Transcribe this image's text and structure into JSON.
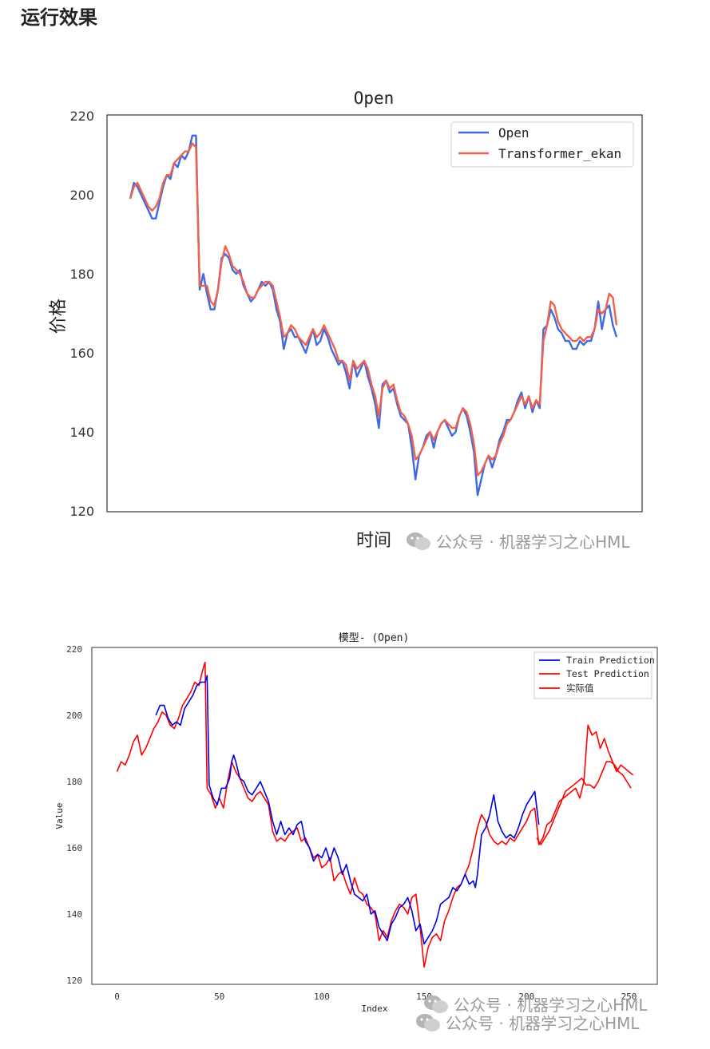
{
  "page": {
    "heading": "运行效果"
  },
  "watermarks": {
    "w1": "公众号 · 机器学习之心HML",
    "w2": "公众号 · 机器学习之心HML",
    "w3": "公众号 · 机器学习之心HML"
  },
  "chart_data": [
    {
      "type": "line",
      "title": "Open",
      "xlabel": "时间",
      "ylabel": "价格",
      "ylim": [
        120,
        220
      ],
      "yticks": [
        120,
        140,
        160,
        180,
        200,
        220
      ],
      "xticks_shown": false,
      "grid": false,
      "legend": "top-right",
      "series": [
        {
          "name": "Open",
          "color": "#4169e1",
          "values": [
            199,
            203,
            202,
            200,
            198,
            196,
            194,
            194,
            198,
            202,
            205,
            204,
            208,
            207,
            210,
            209,
            211,
            215,
            215,
            176,
            180,
            175,
            171,
            171,
            176,
            184,
            185,
            184,
            181,
            180,
            181,
            177,
            175,
            173,
            174,
            176,
            178,
            177,
            178,
            176,
            171,
            168,
            161,
            165,
            166,
            164,
            164,
            162,
            160,
            163,
            166,
            162,
            163,
            166,
            164,
            161,
            159,
            157,
            158,
            155,
            151,
            158,
            154,
            156,
            158,
            154,
            151,
            147,
            141,
            152,
            153,
            150,
            151,
            147,
            144,
            143,
            142,
            136,
            128,
            134,
            136,
            139,
            140,
            136,
            140,
            142,
            143,
            141,
            139,
            140,
            144,
            146,
            144,
            140,
            135,
            124,
            128,
            132,
            134,
            131,
            134,
            138,
            140,
            143,
            143,
            145,
            148,
            150,
            146,
            149,
            145,
            148,
            146,
            166,
            167,
            171,
            169,
            166,
            165,
            163,
            163,
            161,
            161,
            163,
            162,
            163,
            163,
            166,
            173,
            166,
            171,
            172,
            167,
            164
          ],
          "x_start": 0
        },
        {
          "name": "Transformer_ekan",
          "color": "#f0624d",
          "values": [
            199,
            202,
            203,
            201,
            199,
            197,
            196,
            197,
            199,
            203,
            205,
            205,
            208,
            209,
            210,
            211,
            211,
            213,
            212,
            177,
            177,
            177,
            173,
            172,
            176,
            183,
            187,
            185,
            182,
            181,
            180,
            178,
            175,
            174,
            174,
            176,
            177,
            178,
            178,
            177,
            173,
            169,
            164,
            165,
            167,
            166,
            164,
            163,
            162,
            164,
            166,
            164,
            165,
            167,
            165,
            163,
            161,
            158,
            158,
            157,
            153,
            158,
            156,
            157,
            158,
            156,
            152,
            149,
            144,
            151,
            153,
            151,
            152,
            148,
            145,
            144,
            142,
            139,
            133,
            134,
            136,
            138,
            140,
            138,
            140,
            142,
            143,
            142,
            141,
            141,
            144,
            146,
            145,
            142,
            137,
            129,
            130,
            132,
            134,
            133,
            134,
            137,
            139,
            142,
            143,
            145,
            147,
            149,
            147,
            149,
            146,
            148,
            147,
            163,
            167,
            173,
            172,
            168,
            166,
            165,
            164,
            163,
            163,
            164,
            163,
            164,
            164,
            166,
            171,
            170,
            171,
            175,
            174,
            167
          ]
        }
      ]
    },
    {
      "type": "line",
      "title": "模型- (Open)",
      "xlabel": "Index",
      "ylabel": "Value",
      "xlim": [
        -8,
        264
      ],
      "ylim": [
        119,
        222
      ],
      "xticks": [
        0,
        50,
        100,
        150,
        200,
        250
      ],
      "yticks": [
        120,
        140,
        160,
        180,
        200,
        220
      ],
      "grid": false,
      "legend": "top-right",
      "series": [
        {
          "name": "Train Prediction",
          "color": "#0000e6",
          "x": [
            19,
            21,
            23,
            25,
            27,
            29,
            31,
            33,
            35,
            37,
            39,
            41,
            43,
            44,
            45,
            47,
            49,
            51,
            53,
            55,
            56,
            57,
            58,
            60,
            62,
            64,
            66,
            68,
            70,
            72,
            74,
            76,
            78,
            80,
            82,
            84,
            86,
            88,
            90,
            92,
            94,
            96,
            98,
            100,
            102,
            104,
            106,
            108,
            110,
            112,
            114,
            116,
            118,
            120,
            122,
            124,
            126,
            128,
            130,
            132,
            134,
            136,
            138,
            140,
            142,
            144,
            146,
            148,
            150,
            152,
            154,
            156,
            158,
            160,
            162,
            164,
            166,
            168,
            170,
            172,
            174,
            175,
            176,
            178,
            180,
            182,
            184,
            186,
            188,
            190,
            192,
            194,
            196,
            198,
            200,
            202,
            204,
            206
          ],
          "values": [
            200,
            203,
            203,
            199,
            197,
            198,
            197,
            202,
            204,
            206,
            209,
            210,
            210,
            212,
            179,
            175,
            173,
            178,
            178,
            181,
            186,
            188,
            186,
            181,
            180,
            177,
            176,
            178,
            180,
            177,
            174,
            168,
            164,
            168,
            164,
            166,
            164,
            167,
            168,
            162,
            160,
            156,
            158,
            157,
            160,
            156,
            160,
            157,
            152,
            155,
            150,
            146,
            145,
            144,
            146,
            140,
            141,
            136,
            134,
            132,
            137,
            139,
            142,
            143,
            145,
            141,
            135,
            137,
            131,
            133,
            135,
            138,
            143,
            144,
            145,
            148,
            147,
            149,
            152,
            149,
            150,
            148,
            152,
            164,
            166,
            170,
            176,
            168,
            165,
            163,
            164,
            163,
            166,
            170,
            173,
            175,
            177,
            167
          ]
        },
        {
          "name": "Test Prediction",
          "color": "#ff0000",
          "x": [
            205,
            207,
            209,
            211,
            213,
            215,
            217,
            219,
            221,
            223,
            225,
            227,
            229,
            231,
            233,
            235,
            237,
            239,
            241,
            243,
            245,
            247,
            249,
            251
          ],
          "values": [
            163,
            161,
            163,
            165,
            168,
            171,
            174,
            177,
            178,
            179,
            180,
            181,
            179,
            179,
            178,
            180,
            183,
            186,
            186,
            185,
            183,
            182,
            180,
            178
          ]
        },
        {
          "name": "实际值",
          "color": "#ff0000",
          "x": [
            0,
            2,
            4,
            6,
            8,
            10,
            12,
            14,
            16,
            18,
            20,
            22,
            24,
            26,
            28,
            30,
            32,
            34,
            36,
            38,
            40,
            42,
            43,
            44,
            46,
            48,
            50,
            52,
            54,
            56,
            58,
            60,
            62,
            64,
            66,
            68,
            70,
            72,
            74,
            76,
            78,
            80,
            82,
            84,
            86,
            88,
            90,
            92,
            94,
            96,
            98,
            100,
            102,
            104,
            106,
            108,
            110,
            112,
            114,
            116,
            118,
            120,
            122,
            124,
            126,
            128,
            130,
            132,
            134,
            136,
            138,
            140,
            142,
            144,
            146,
            148,
            150,
            152,
            154,
            156,
            158,
            160,
            162,
            164,
            166,
            168,
            170,
            172,
            174,
            176,
            178,
            180,
            182,
            184,
            186,
            188,
            190,
            192,
            194,
            196,
            198,
            200,
            202,
            204,
            206,
            208,
            210,
            212,
            214,
            216,
            218,
            220,
            222,
            224,
            226,
            228,
            230,
            232,
            234,
            236,
            238,
            240,
            242,
            244,
            246,
            248,
            250,
            252
          ],
          "values": [
            183,
            186,
            185,
            188,
            192,
            194,
            188,
            190,
            193,
            196,
            198,
            201,
            200,
            197,
            196,
            199,
            203,
            205,
            207,
            210,
            209,
            214,
            216,
            178,
            176,
            172,
            175,
            172,
            180,
            186,
            183,
            181,
            178,
            175,
            174,
            176,
            177,
            175,
            173,
            165,
            162,
            163,
            162,
            164,
            165,
            166,
            162,
            163,
            160,
            157,
            158,
            154,
            155,
            157,
            150,
            152,
            153,
            149,
            146,
            151,
            147,
            146,
            143,
            142,
            140,
            132,
            135,
            133,
            138,
            141,
            143,
            142,
            140,
            145,
            146,
            136,
            124,
            130,
            133,
            134,
            132,
            138,
            141,
            145,
            148,
            149,
            152,
            155,
            160,
            166,
            170,
            168,
            164,
            162,
            161,
            162,
            161,
            163,
            162,
            164,
            166,
            168,
            171,
            172,
            161,
            163,
            167,
            168,
            171,
            174,
            175,
            176,
            177,
            178,
            175,
            180,
            197,
            194,
            195,
            190,
            193,
            189,
            186,
            183,
            185,
            184,
            183,
            182
          ]
        }
      ]
    }
  ]
}
